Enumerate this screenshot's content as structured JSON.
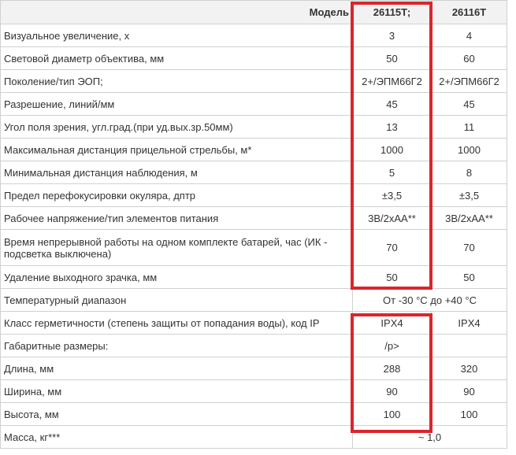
{
  "table": {
    "header": {
      "label": "Модель",
      "col1": "26115Т;",
      "col2": "26116Т"
    },
    "rows": [
      {
        "label": "Визуальное увеличение, х",
        "v1": "3",
        "v2": "4"
      },
      {
        "label": "Световой диаметр объектива, мм",
        "v1": "50",
        "v2": "60"
      },
      {
        "label": "Поколение/тип ЭОП;",
        "v1": "2+/ЭПМ66Г2",
        "v2": "2+/ЭПМ66Г2"
      },
      {
        "label": "Разрешение, линий/мм",
        "v1": "45",
        "v2": "45"
      },
      {
        "label": "Угол поля зрения, угл.град.(при уд.вых.зр.50мм)",
        "v1": "13",
        "v2": "11"
      },
      {
        "label": "Максимальная дистанция прицельной стрельбы, м*",
        "v1": "1000",
        "v2": "1000"
      },
      {
        "label": "Минимальная дистанция наблюдения, м",
        "v1": "5",
        "v2": "8"
      },
      {
        "label": "Предел перефокусировки окуляра, дптр",
        "v1": "±3,5",
        "v2": "±3,5"
      },
      {
        "label": "Рабочее напряжение/тип элементов питания",
        "v1": "3В/2хАА**",
        "v2": "3В/2хАА**"
      },
      {
        "label": "Время непрерывной работы на одном комплекте батарей, час (ИК - подсветка выключена)",
        "v1": "70",
        "v2": "70"
      },
      {
        "label": "Удаление выходного зрачка, мм",
        "v1": "50",
        "v2": "50"
      },
      {
        "label": "Температурный диапазон",
        "span": "От -30 °С до +40 °С"
      },
      {
        "label": "Класс герметичности (степень защиты от попадания воды), код IP",
        "v1": "IPX4",
        "v2": "IPX4"
      },
      {
        "label": "Габаритные размеры:",
        "v1": "/p>",
        "v2": ""
      },
      {
        "label": "Длина, мм",
        "v1": "288",
        "v2": "320"
      },
      {
        "label": "Ширина, мм",
        "v1": "90",
        "v2": "90"
      },
      {
        "label": "Высота, мм",
        "v1": "100",
        "v2": "100"
      },
      {
        "label": "Масса, кг***",
        "span": "~ 1,0"
      }
    ]
  },
  "highlight_color": "#d9262c"
}
